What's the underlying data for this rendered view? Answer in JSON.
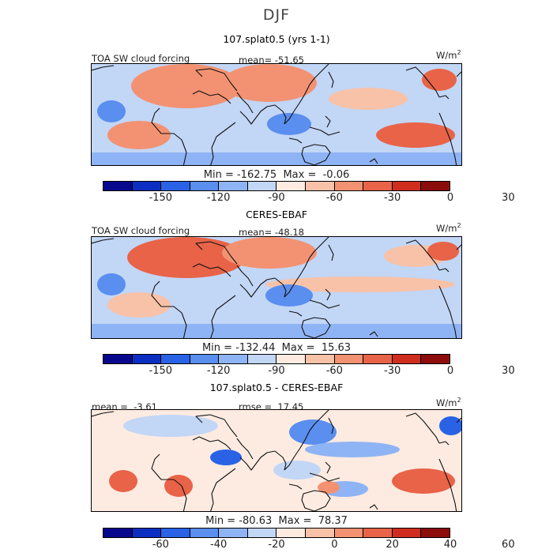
{
  "season": "DJF",
  "units": "W/m",
  "units_exp": "2",
  "colorbar_colors": [
    "#08088c",
    "#0c2fc1",
    "#2a62e6",
    "#5a8eef",
    "#8fb4f5",
    "#c2d6f6",
    "#fdebe1",
    "#f8c2a8",
    "#f29272",
    "#e86348",
    "#cf2e1e",
    "#8c0c0c"
  ],
  "chart_data": [
    {
      "type": "heatmap",
      "panel_title": "107.splat0.5 (yrs 1-1)",
      "variable": "TOA SW cloud forcing",
      "mean_label": "mean=",
      "mean": "-51.65",
      "min_label": "Min =",
      "min": "-162.75",
      "max_label": "Max =",
      "max": "-0.06",
      "colorbar_ticks": [
        "-150",
        "-120",
        "-90",
        "-60",
        "-30",
        "0",
        "30"
      ]
    },
    {
      "type": "heatmap",
      "panel_title": "CERES-EBAF",
      "variable": "TOA SW cloud forcing",
      "mean_label": "mean=",
      "mean": "-48.18",
      "min_label": "Min =",
      "min": "-132.44",
      "max_label": "Max =",
      "max": "15.63",
      "colorbar_ticks": [
        "-150",
        "-120",
        "-90",
        "-60",
        "-30",
        "0",
        "30"
      ]
    },
    {
      "type": "heatmap",
      "panel_title": "107.splat0.5 - CERES-EBAF",
      "mean_label": "mean =",
      "mean": "-3.61",
      "rmse_label": "rmse =",
      "rmse": "17.45",
      "min_label": "Min =",
      "min": "-80.63",
      "max_label": "Max =",
      "max": "78.37",
      "colorbar_ticks": [
        "-60",
        "-40",
        "-20",
        "0",
        "20",
        "40",
        "60"
      ]
    }
  ]
}
